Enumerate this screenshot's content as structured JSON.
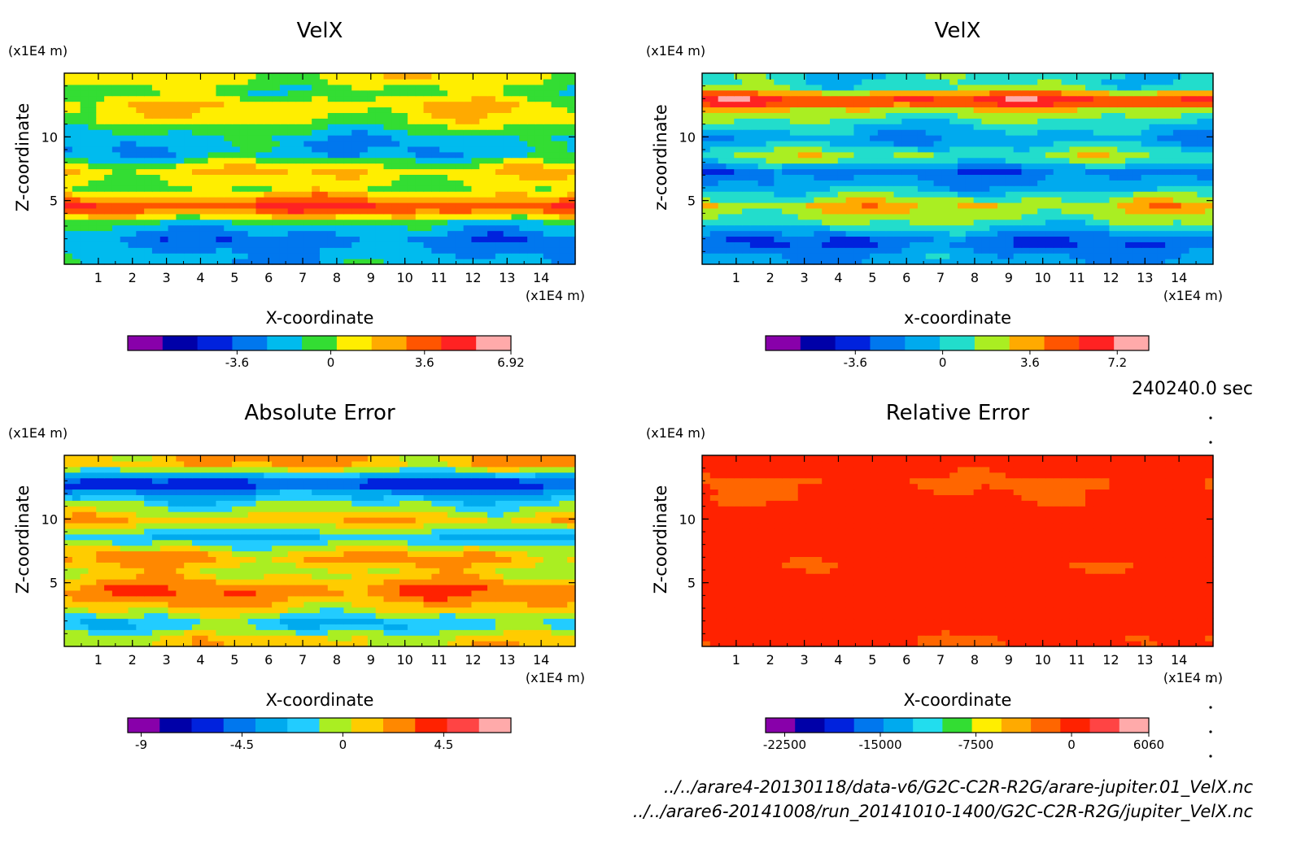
{
  "time_label": "240240.0 sec",
  "files": [
    "../../arare4-20130118/data-v6/G2C-C2R-R2G/arare-jupiter.01_VelX.nc",
    "../../arare6-20141008/run_20141010-1400/G2C-C2R-R2G/jupiter_VelX.nc"
  ],
  "chart_data": [
    {
      "type": "heatmap",
      "title": "VelX",
      "xlabel": "X-coordinate",
      "ylabel": "Z-coordinate",
      "x_unit": "(x1E4 m)",
      "y_unit": "(x1E4 m)",
      "x_ticks": [
        1,
        2,
        3,
        4,
        5,
        6,
        7,
        8,
        9,
        10,
        11,
        12,
        13,
        14
      ],
      "y_ticks": [
        5,
        10
      ],
      "xlim": [
        0,
        15
      ],
      "ylim": [
        0,
        15
      ],
      "colorbar": {
        "colors": [
          "#8800aa",
          "#0000a8",
          "#0022dd",
          "#0077ee",
          "#00bbee",
          "#33dd33",
          "#ffee00",
          "#ffaa00",
          "#ff5500",
          "#ff2222",
          "#ffaaaa"
        ],
        "tick_labels": [
          "-3.6",
          "0",
          "3.6",
          "6.92"
        ],
        "tick_values": [
          -3.6,
          0,
          3.6,
          6.92
        ],
        "range": [
          -7.8,
          6.92
        ]
      },
      "z_bands": [
        {
          "z": 0.5,
          "value": -2.0
        },
        {
          "z": 2.0,
          "value": -3.2
        },
        {
          "z": 3.2,
          "value": -1.2
        },
        {
          "z": 4.5,
          "value": 4.5
        },
        {
          "z": 6.0,
          "value": 0.2
        },
        {
          "z": 7.4,
          "value": 1.6
        },
        {
          "z": 8.7,
          "value": -2.2
        },
        {
          "z": 10.0,
          "value": -1.8
        },
        {
          "z": 11.3,
          "value": 0.6
        },
        {
          "z": 12.5,
          "value": 1.3
        },
        {
          "z": 13.6,
          "value": -0.6
        },
        {
          "z": 14.6,
          "value": 0.9
        }
      ]
    },
    {
      "type": "heatmap",
      "title": "VelX",
      "xlabel": "x-coordinate",
      "ylabel": "z-coordinate",
      "x_unit": "(x1E4 m)",
      "y_unit": "(x1E4 m)",
      "x_ticks": [
        1,
        2,
        3,
        4,
        5,
        6,
        7,
        8,
        9,
        10,
        11,
        12,
        13,
        14
      ],
      "y_ticks": [
        5,
        10
      ],
      "xlim": [
        0,
        15
      ],
      "ylim": [
        0,
        15
      ],
      "colorbar": {
        "colors": [
          "#8800aa",
          "#0000a8",
          "#0022dd",
          "#0077ee",
          "#00aaee",
          "#22ddcc",
          "#aaee22",
          "#ffaa00",
          "#ff5500",
          "#ff2222",
          "#ffaaaa"
        ],
        "tick_labels": [
          "-3.6",
          "0",
          "3.6",
          "7.2"
        ],
        "tick_values": [
          -3.6,
          0,
          3.6,
          7.2
        ],
        "range": [
          -7.3,
          8.5
        ]
      },
      "z_bands": [
        {
          "z": 0.6,
          "value": -1.2
        },
        {
          "z": 1.8,
          "value": -3.0
        },
        {
          "z": 3.2,
          "value": 0.8
        },
        {
          "z": 4.6,
          "value": 3.0
        },
        {
          "z": 6.0,
          "value": -0.8
        },
        {
          "z": 7.3,
          "value": -2.4
        },
        {
          "z": 8.5,
          "value": 1.8
        },
        {
          "z": 9.8,
          "value": -1.5
        },
        {
          "z": 11.0,
          "value": 0.3
        },
        {
          "z": 12.1,
          "value": 2.5
        },
        {
          "z": 12.9,
          "value": 6.5
        },
        {
          "z": 14.0,
          "value": 0.6
        }
      ]
    },
    {
      "type": "heatmap",
      "title": "Absolute Error",
      "xlabel": "X-coordinate",
      "ylabel": "Z-coordinate",
      "x_unit": "(x1E4 m)",
      "y_unit": "(x1E4 m)",
      "x_ticks": [
        1,
        2,
        3,
        4,
        5,
        6,
        7,
        8,
        9,
        10,
        11,
        12,
        13,
        14
      ],
      "y_ticks": [
        5,
        10
      ],
      "xlim": [
        0,
        15
      ],
      "ylim": [
        0,
        15
      ],
      "colorbar": {
        "colors": [
          "#8800aa",
          "#0000a8",
          "#0022dd",
          "#0077ee",
          "#00aaee",
          "#22ccff",
          "#aaee22",
          "#ffcc00",
          "#ff8800",
          "#ff2200",
          "#ff4444",
          "#ffaaaa"
        ],
        "tick_labels": [
          "-9",
          "-4.5",
          "0",
          "4.5"
        ],
        "tick_values": [
          -9,
          -4.5,
          0,
          4.5
        ],
        "range": [
          -9.6,
          7.5
        ]
      },
      "z_bands": [
        {
          "z": 0.5,
          "value": 1.0
        },
        {
          "z": 1.8,
          "value": -2.5
        },
        {
          "z": 3.0,
          "value": 0.8
        },
        {
          "z": 4.4,
          "value": 3.2
        },
        {
          "z": 5.8,
          "value": 0.2
        },
        {
          "z": 7.0,
          "value": 2.2
        },
        {
          "z": 8.6,
          "value": -2.6
        },
        {
          "z": 9.9,
          "value": 1.5
        },
        {
          "z": 11.1,
          "value": -1.0
        },
        {
          "z": 12.0,
          "value": -3.2
        },
        {
          "z": 12.8,
          "value": -6.5
        },
        {
          "z": 14.2,
          "value": 1.6
        }
      ]
    },
    {
      "type": "heatmap",
      "title": "Relative Error",
      "xlabel": "X-coordinate",
      "ylabel": "Z-coordinate",
      "x_unit": "(x1E4 m)",
      "y_unit": "(x1E4 m)",
      "x_ticks": [
        1,
        2,
        3,
        4,
        5,
        6,
        7,
        8,
        9,
        10,
        11,
        12,
        13,
        14
      ],
      "y_ticks": [
        5,
        10
      ],
      "xlim": [
        0,
        15
      ],
      "ylim": [
        0,
        15
      ],
      "colorbar": {
        "colors": [
          "#8800aa",
          "#0000a8",
          "#0022dd",
          "#0077ee",
          "#00aaee",
          "#22ddee",
          "#33dd33",
          "#ffee00",
          "#ffaa00",
          "#ff6600",
          "#ff2200",
          "#ff4444",
          "#ffaaaa"
        ],
        "tick_labels": [
          "-22500",
          "-15000",
          "-7500",
          "0",
          "6060"
        ],
        "tick_values": [
          -22500,
          -15000,
          -7500,
          0,
          6060
        ],
        "range": [
          -24000,
          6060
        ]
      },
      "z_bands": [
        {
          "z": 0.5,
          "value": -800
        },
        {
          "z": 2.0,
          "value": 300
        },
        {
          "z": 3.5,
          "value": 400
        },
        {
          "z": 5.0,
          "value": 350
        },
        {
          "z": 6.3,
          "value": -600
        },
        {
          "z": 7.5,
          "value": 300
        },
        {
          "z": 9.0,
          "value": 350
        },
        {
          "z": 10.5,
          "value": 300
        },
        {
          "z": 11.8,
          "value": -700
        },
        {
          "z": 13.0,
          "value": -900
        },
        {
          "z": 14.5,
          "value": 400
        }
      ]
    }
  ]
}
